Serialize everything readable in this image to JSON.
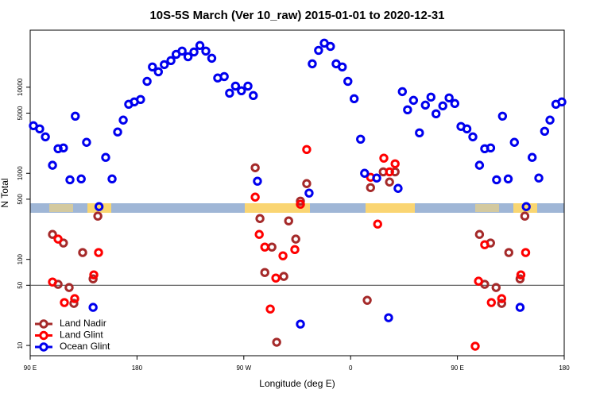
{
  "chart_data": {
    "type": "scatter",
    "title": "10S-5S March (Ver 10_raw)   2015-01-01 to 2020-12-31",
    "x_label": "Longitude (deg E)",
    "y_label": "N Total",
    "log_y": true,
    "xlim": [
      90,
      540
    ],
    "ylim": [
      7.6,
      46000
    ],
    "xticks": [
      {
        "value": 90,
        "label": "90 E"
      },
      180,
      {
        "value": 270,
        "label": "90 W"
      },
      {
        "value": 360,
        "label": "0"
      },
      {
        "value": 450,
        "label": "90 E"
      },
      {
        "value": 540,
        "label": "180"
      }
    ],
    "yticks": [
      10,
      50,
      100,
      500,
      1000,
      5000,
      10000
    ],
    "hline": 50,
    "legend": "bottom-left",
    "series": [
      {
        "name": "Land Nadir",
        "color": "#a52a2a",
        "x": [
          108.8,
          113.5,
          118,
          122.8,
          126.8,
          134.2,
          143,
          147,
          279.6,
          283.6,
          287.7,
          293.7,
          297.7,
          303.7,
          307.8,
          313.8,
          317.7,
          323,
          374,
          376.8,
          387.5,
          392.8,
          397.5,
          468.6,
          473,
          477.9,
          482.6,
          487.3,
          493.3,
          502.8,
          506.8
        ],
        "values": [
          195,
          51.3,
          155,
          47.1,
          30.8,
          120,
          59.4,
          318,
          1160,
          298,
          70.4,
          139,
          10.9,
          63.4,
          280,
          172,
          475,
          759,
          33.5,
          682,
          1040,
          792,
          1040,
          195,
          51.3,
          155,
          47.1,
          30.8,
          120,
          59.4,
          318
        ]
      },
      {
        "name": "Land Glint",
        "color": "#ff0000",
        "x": [
          108.8,
          113.5,
          118.8,
          127.5,
          143.6,
          147.6,
          279.6,
          283,
          287.7,
          292.3,
          297,
          303,
          313,
          317.7,
          323,
          376.8,
          382.8,
          388,
          392.8,
          397.5,
          465,
          467.8,
          473,
          478.6,
          487.3,
          503.5,
          507.5
        ],
        "values": [
          54.6,
          172,
          31.5,
          35,
          66.1,
          120,
          529,
          195,
          139,
          26.5,
          60.7,
          110,
          130,
          437,
          1890,
          899,
          257,
          1500,
          1040,
          1290,
          9.8,
          55.8,
          148,
          31.5,
          35,
          66.1,
          120
        ]
      },
      {
        "name": "Ocean Glint",
        "color": "#0000ee",
        "x": [
          92.7,
          98,
          102.8,
          108.8,
          113.5,
          118,
          123.5,
          128,
          133,
          137.5,
          143,
          148,
          153.6,
          159,
          163.7,
          168.4,
          173,
          177.7,
          183,
          188.5,
          193,
          198,
          203,
          208.6,
          213,
          218,
          223,
          228,
          233,
          238,
          243,
          248,
          253.5,
          258,
          263,
          268,
          273.5,
          278,
          281.5,
          317.7,
          325,
          327.7,
          333,
          337.8,
          343,
          347.8,
          353,
          357.7,
          363,
          368.4,
          371.8,
          382,
          392,
          400,
          403.6,
          408,
          413,
          418,
          423,
          427.7,
          432,
          437.7,
          443,
          447.8,
          453,
          458,
          463,
          468.6,
          473,
          478,
          483,
          488,
          492.8,
          498,
          502.8,
          508,
          513,
          518.6,
          523.5,
          528,
          533,
          538
        ],
        "values": [
          3570,
          3280,
          2650,
          1240,
          1930,
          1970,
          840,
          4610,
          860,
          2290,
          27.7,
          410,
          1530,
          860,
          3020,
          4150,
          6340,
          6750,
          7200,
          11700,
          17200,
          15100,
          18300,
          20400,
          24100,
          26300,
          22600,
          25700,
          30500,
          26300,
          21700,
          12800,
          13300,
          8530,
          10300,
          9100,
          10300,
          8000,
          810,
          17.7,
          589,
          18700,
          26800,
          32500,
          29800,
          18700,
          17200,
          11700,
          7350,
          2490,
          1000,
          881,
          21,
          668,
          8890,
          5460,
          7040,
          2950,
          6200,
          7670,
          4910,
          6070,
          7510,
          6470,
          3500,
          3280,
          2650,
          1240,
          1930,
          1970,
          840,
          4610,
          860,
          2290,
          27.7,
          410,
          1530,
          881,
          3080,
          4150,
          6340,
          6750
        ]
      }
    ]
  }
}
